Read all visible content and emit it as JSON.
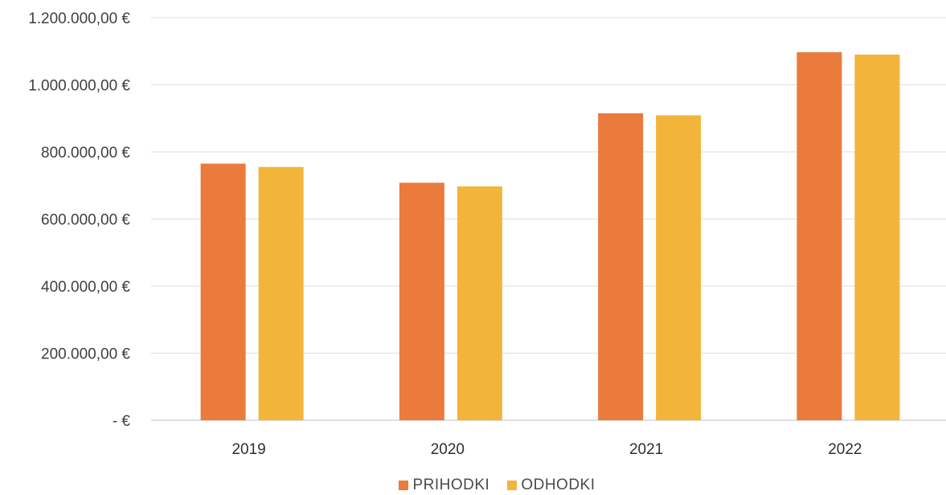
{
  "chart_data": {
    "type": "bar",
    "categories": [
      "2019",
      "2020",
      "2021",
      "2022"
    ],
    "series": [
      {
        "name": "PRIHODKI",
        "values": [
          765000,
          708000,
          915000,
          1097000
        ],
        "color": "#eb7a3d"
      },
      {
        "name": "ODHODKI",
        "values": [
          755000,
          697000,
          909000,
          1090000
        ],
        "color": "#f2b53a"
      }
    ],
    "y_tick_values": [
      0,
      200000,
      400000,
      600000,
      800000,
      1000000,
      1200000
    ],
    "y_tick_labels": [
      "-  €",
      "200.000,00 €",
      "400.000,00 €",
      "600.000,00 €",
      "800.000,00 €",
      "1.000.000,00 €",
      "1.200.000,00 €"
    ],
    "ylim": [
      0,
      1200000
    ],
    "grid": true,
    "legend_position": "bottom",
    "title": "",
    "xlabel": "",
    "ylabel": ""
  }
}
